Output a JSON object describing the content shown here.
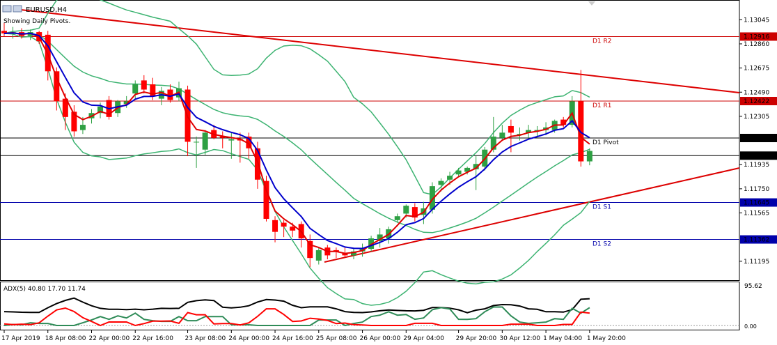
{
  "header": {
    "symbol_title": "EURUSD,H4",
    "status_text": "Showing Daily Pivots."
  },
  "indicator": {
    "adx_label": "ADX(5) 40.80 17.70 11.74",
    "axis_top": "95.62",
    "axis_bottom": "0.00"
  },
  "colors": {
    "bull": "#2ea043",
    "bear": "#ff0000",
    "fast_ma": "#e00000",
    "slow_ma": "#0000cc",
    "bands": "#3cb371",
    "trendline": "#dd0000",
    "pivot_red": "#cc0000",
    "pivot_black": "#000000",
    "pivot_blue": "#0000aa",
    "adx_main": "#000000",
    "adx_plus": "#2e8b57",
    "adx_minus": "#ff0000"
  },
  "chart_data": {
    "type": "candlestick",
    "title": "EURUSD,H4",
    "ylim": [
      1.1105,
      1.1318
    ],
    "price_ticks": [
      "1.13045",
      "1.12860",
      "1.12675",
      "1.12490",
      "1.12305",
      "1.11935",
      "1.11750",
      "1.11565",
      "1.11195"
    ],
    "time_labels": [
      "17 Apr 2019",
      "18 Apr 08:00",
      "22 Apr 00:00",
      "22 Apr 16:00",
      "23 Apr 08:00",
      "24 Apr 00:00",
      "24 Apr 16:00",
      "25 Apr 08:00",
      "26 Apr 00:00",
      "29 Apr 04:00",
      "29 Apr 20:00",
      "30 Apr 12:00",
      "1 May 04:00",
      "1 May 20:00"
    ],
    "pivot_levels": [
      {
        "name": "D1 R2",
        "price": 1.12916,
        "label": "1.12916",
        "color": "red"
      },
      {
        "name": "D1 R1",
        "price": 1.12422,
        "label": "1.12422",
        "color": "red"
      },
      {
        "name": "D1 Pivot",
        "price": 1.12139,
        "label": "1.12139",
        "color": "black"
      },
      {
        "name": "",
        "price": 1.12004,
        "label": "1.12004",
        "color": "black"
      },
      {
        "name": "D1 S1",
        "price": 1.11645,
        "label": "1.11645",
        "color": "blue"
      },
      {
        "name": "D1 S2",
        "price": 1.11362,
        "label": "1.11362",
        "color": "blue"
      }
    ],
    "candles": [
      [
        1.1296,
        1.1302,
        1.1292,
        1.1294
      ],
      [
        1.1294,
        1.1299,
        1.129,
        1.1295
      ],
      [
        1.1295,
        1.1298,
        1.129,
        1.1292
      ],
      [
        1.1292,
        1.1297,
        1.1289,
        1.1295
      ],
      [
        1.1295,
        1.1296,
        1.1286,
        1.1288
      ],
      [
        1.1293,
        1.1296,
        1.1258,
        1.1265
      ],
      [
        1.1265,
        1.1268,
        1.1235,
        1.1242
      ],
      [
        1.1244,
        1.1248,
        1.122,
        1.123
      ],
      [
        1.1234,
        1.1239,
        1.1215,
        1.1219
      ],
      [
        1.122,
        1.123,
        1.1217,
        1.1224
      ],
      [
        1.1229,
        1.1236,
        1.1225,
        1.1233
      ],
      [
        1.1233,
        1.1241,
        1.1229,
        1.1238
      ],
      [
        1.1243,
        1.1246,
        1.1228,
        1.123
      ],
      [
        1.1233,
        1.1243,
        1.123,
        1.1242
      ],
      [
        1.124,
        1.1246,
        1.1237,
        1.1242
      ],
      [
        1.1248,
        1.1258,
        1.1243,
        1.1255
      ],
      [
        1.1258,
        1.1262,
        1.1248,
        1.1251
      ],
      [
        1.1255,
        1.126,
        1.1243,
        1.1246
      ],
      [
        1.1244,
        1.1253,
        1.1239,
        1.125
      ],
      [
        1.1251,
        1.1255,
        1.1241,
        1.1243
      ],
      [
        1.1245,
        1.1257,
        1.1242,
        1.1252
      ],
      [
        1.1251,
        1.1254,
        1.12,
        1.1211
      ],
      [
        1.1211,
        1.1215,
        1.1191,
        1.1211
      ],
      [
        1.1205,
        1.122,
        1.1201,
        1.1218
      ],
      [
        1.122,
        1.1224,
        1.1213,
        1.1214
      ],
      [
        1.1215,
        1.1219,
        1.1206,
        1.1214
      ],
      [
        1.1212,
        1.1218,
        1.1198,
        1.1213
      ],
      [
        1.1213,
        1.1218,
        1.1195,
        1.1212
      ],
      [
        1.1215,
        1.1218,
        1.1198,
        1.1206
      ],
      [
        1.1206,
        1.1211,
        1.1175,
        1.1182
      ],
      [
        1.1181,
        1.1185,
        1.115,
        1.1152
      ],
      [
        1.1151,
        1.1154,
        1.1134,
        1.1142
      ],
      [
        1.1149,
        1.1151,
        1.1138,
        1.1146
      ],
      [
        1.1146,
        1.1149,
        1.1138,
        1.1143
      ],
      [
        1.1148,
        1.115,
        1.113,
        1.1137
      ],
      [
        1.1135,
        1.114,
        1.1115,
        1.1122
      ],
      [
        1.112,
        1.113,
        1.1117,
        1.1128
      ],
      [
        1.113,
        1.1132,
        1.1121,
        1.1124
      ],
      [
        1.1128,
        1.113,
        1.1122,
        1.1127
      ],
      [
        1.1126,
        1.113,
        1.1122,
        1.1124
      ],
      [
        1.1124,
        1.1129,
        1.1121,
        1.1127
      ],
      [
        1.1127,
        1.1133,
        1.1123,
        1.1129
      ],
      [
        1.1129,
        1.1139,
        1.1127,
        1.1137
      ],
      [
        1.1135,
        1.1145,
        1.113,
        1.114
      ],
      [
        1.1137,
        1.1146,
        1.1133,
        1.1144
      ],
      [
        1.1151,
        1.1156,
        1.1149,
        1.1154
      ],
      [
        1.1156,
        1.1163,
        1.1153,
        1.1162
      ],
      [
        1.1161,
        1.1164,
        1.115,
        1.1153
      ],
      [
        1.1155,
        1.1165,
        1.1148,
        1.116
      ],
      [
        1.1159,
        1.118,
        1.1156,
        1.1177
      ],
      [
        1.1178,
        1.1183,
        1.1173,
        1.1181
      ],
      [
        1.1182,
        1.1188,
        1.1178,
        1.1185
      ],
      [
        1.1186,
        1.1191,
        1.1184,
        1.1189
      ],
      [
        1.1188,
        1.1192,
        1.1186,
        1.1191
      ],
      [
        1.119,
        1.12,
        1.1174,
        1.1194
      ],
      [
        1.1192,
        1.1207,
        1.1189,
        1.1205
      ],
      [
        1.1205,
        1.123,
        1.1203,
        1.1215
      ],
      [
        1.1214,
        1.1224,
        1.1212,
        1.1218
      ],
      [
        1.1223,
        1.1228,
        1.1203,
        1.1218
      ],
      [
        1.1216,
        1.1222,
        1.1212,
        1.1217
      ],
      [
        1.1218,
        1.1224,
        1.1214,
        1.122
      ],
      [
        1.1219,
        1.1223,
        1.1214,
        1.122
      ],
      [
        1.122,
        1.1226,
        1.1216,
        1.1222
      ],
      [
        1.122,
        1.1228,
        1.1218,
        1.1227
      ],
      [
        1.1228,
        1.123,
        1.1222,
        1.1224
      ],
      [
        1.1224,
        1.1246,
        1.1222,
        1.1242
      ],
      [
        1.1242,
        1.1266,
        1.1192,
        1.1196
      ],
      [
        1.1196,
        1.1206,
        1.1193,
        1.1204
      ]
    ]
  }
}
